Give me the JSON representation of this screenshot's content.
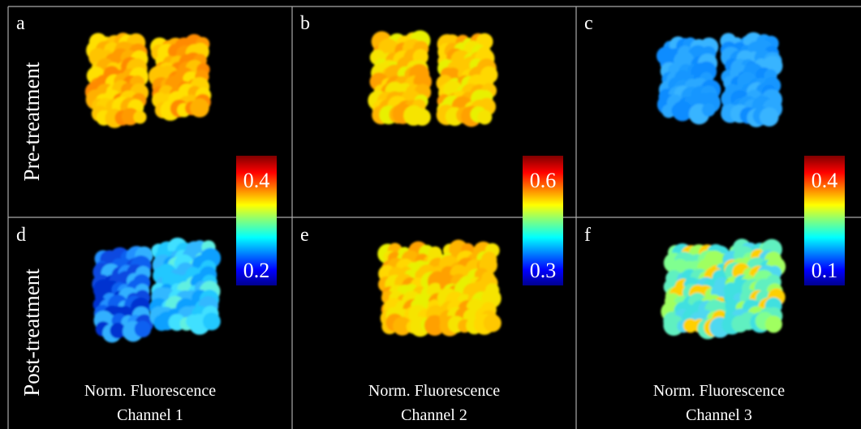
{
  "panels": [
    {
      "label": "a"
    },
    {
      "label": "b"
    },
    {
      "label": "c"
    },
    {
      "label": "d"
    },
    {
      "label": "e"
    },
    {
      "label": "f"
    }
  ],
  "row_labels": [
    "Pre-treatment",
    "Post-treatment"
  ],
  "colorbars": [
    {
      "top_label": "0.4",
      "bottom_label": "0.2"
    },
    {
      "top_label": "0.6",
      "bottom_label": "0.3"
    },
    {
      "top_label": "0.4",
      "bottom_label": "0.1"
    }
  ],
  "captions": [
    {
      "line1": "Norm. Fluorescence",
      "line2": "Channel 1"
    },
    {
      "line1": "Norm. Fluorescence",
      "line2": "Channel 2"
    },
    {
      "line1": "Norm. Fluorescence",
      "line2": "Channel 3"
    }
  ]
}
